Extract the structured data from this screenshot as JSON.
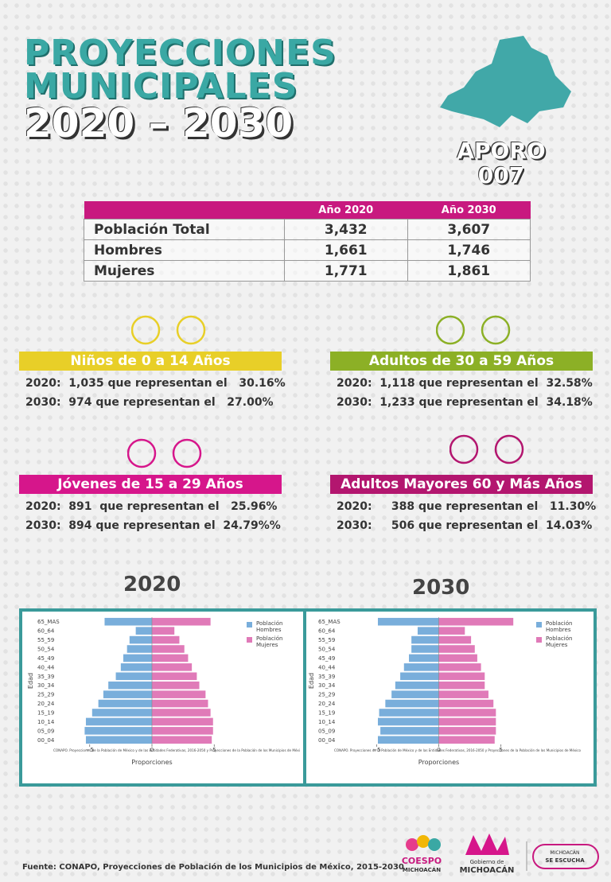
{
  "header": {
    "title": [
      "PROYECCIONES",
      "MUNICIPALES",
      "2020 – 2030"
    ]
  },
  "municipality": {
    "name": "APORO",
    "code": "007"
  },
  "table": {
    "header": [
      "Año 2020",
      "Año 2030"
    ],
    "rows": [
      [
        "Población Total",
        "3,432",
        "3,607"
      ],
      [
        "Hombres",
        "1,661",
        "1,746"
      ],
      [
        "Mujeres",
        "1,771",
        "1,861"
      ]
    ]
  },
  "groups": [
    {
      "title": "Niños de 0 a 14 Años",
      "lines": [
        "2020:  1,035 que representan el   30.16%",
        "2030:  974 que representan el   27.00%"
      ]
    },
    {
      "title": "Adultos de 30 a 59 Años",
      "lines": [
        "2020:  1,118 que representan el  32.58%",
        "2030:  1,233 que representan el  34.18%"
      ]
    },
    {
      "title": "Jóvenes de 15 a 29 Años",
      "lines": [
        "2020:  891  que representan el   25.96%",
        "2030:  894 que representan el  24.79%%"
      ]
    },
    {
      "title": "Adultos Mayores  60 y Más Años",
      "lines": [
        "2020:     388 que representan el   11.30%",
        "2030:     506 que representan el  14.03%"
      ]
    }
  ],
  "chart_data": [
    {
      "type": "bar",
      "title": "2020",
      "categories": [
        "00_04",
        "05_09",
        "10_14",
        "15_19",
        "20_24",
        "25_29",
        "30_34",
        "35_39",
        "40_44",
        "45_49",
        "50_54",
        "55_59",
        "60_64",
        "65_MAS"
      ],
      "series": [
        {
          "name": "Población Hombres",
          "color": "#79aedb",
          "values": [
            -5.3,
            -5.4,
            -5.3,
            -4.8,
            -4.3,
            -3.9,
            -3.5,
            -2.9,
            -2.5,
            -2.3,
            -2.0,
            -1.8,
            -1.3,
            -3.8
          ]
        },
        {
          "name": "Población Mujeres",
          "color": "#e07ab8",
          "values": [
            4.8,
            4.9,
            4.9,
            4.7,
            4.5,
            4.3,
            3.8,
            3.6,
            3.2,
            2.9,
            2.6,
            2.2,
            1.8,
            4.7
          ]
        }
      ],
      "xlim": [
        -6,
        6
      ],
      "xticks": [
        {
          "value": -5,
          "label": "−5"
        },
        0,
        5
      ],
      "xlabel": "Proporciones",
      "ylabel": "Edad",
      "note": "CONAPO. Proyecciones de la Población de México y de las Entidades Federativas, 2016-2050 y Proyecciones de la Población de los Municipios de Méxi"
    },
    {
      "type": "bar",
      "title": "2030",
      "categories": [
        "00_04",
        "05_09",
        "10_14",
        "15_19",
        "20_24",
        "25_29",
        "30_34",
        "35_39",
        "40_44",
        "45_49",
        "50_54",
        "55_59",
        "60_64",
        "65_MAS"
      ],
      "series": [
        {
          "name": "Población Hombres",
          "color": "#79aedb",
          "values": [
            -4.9,
            -4.7,
            -4.9,
            -4.8,
            -4.3,
            -3.8,
            -3.5,
            -3.1,
            -2.8,
            -2.4,
            -2.2,
            -2.2,
            -1.7,
            -4.9
          ]
        },
        {
          "name": "Población Mujeres",
          "color": "#e07ab8",
          "values": [
            4.5,
            4.6,
            4.6,
            4.6,
            4.4,
            4.0,
            3.7,
            3.7,
            3.4,
            3.1,
            2.9,
            2.6,
            2.1,
            6.0
          ]
        }
      ],
      "xlim": [
        -6.5,
        6.5
      ],
      "xticks": [
        {
          "value": -5,
          "label": "−5"
        },
        0,
        5
      ],
      "xlabel": "Proporciones",
      "ylabel": "Edad",
      "note": "CONAPO. Proyecciones de la Población de México y de las Entidades Federativas, 2016-2050 y Proyecciones de la Población de los Municipios de México"
    }
  ],
  "footer": {
    "source": "Fuente: CONAPO, Proyecciones de Población de los Municipios de México, 2015-2030",
    "logos": [
      "COESPO",
      "MICHOACÁN",
      "Gobierno de",
      "MICHOACÁN",
      "MICHOACÁN",
      "SE ESCUCHA"
    ]
  }
}
